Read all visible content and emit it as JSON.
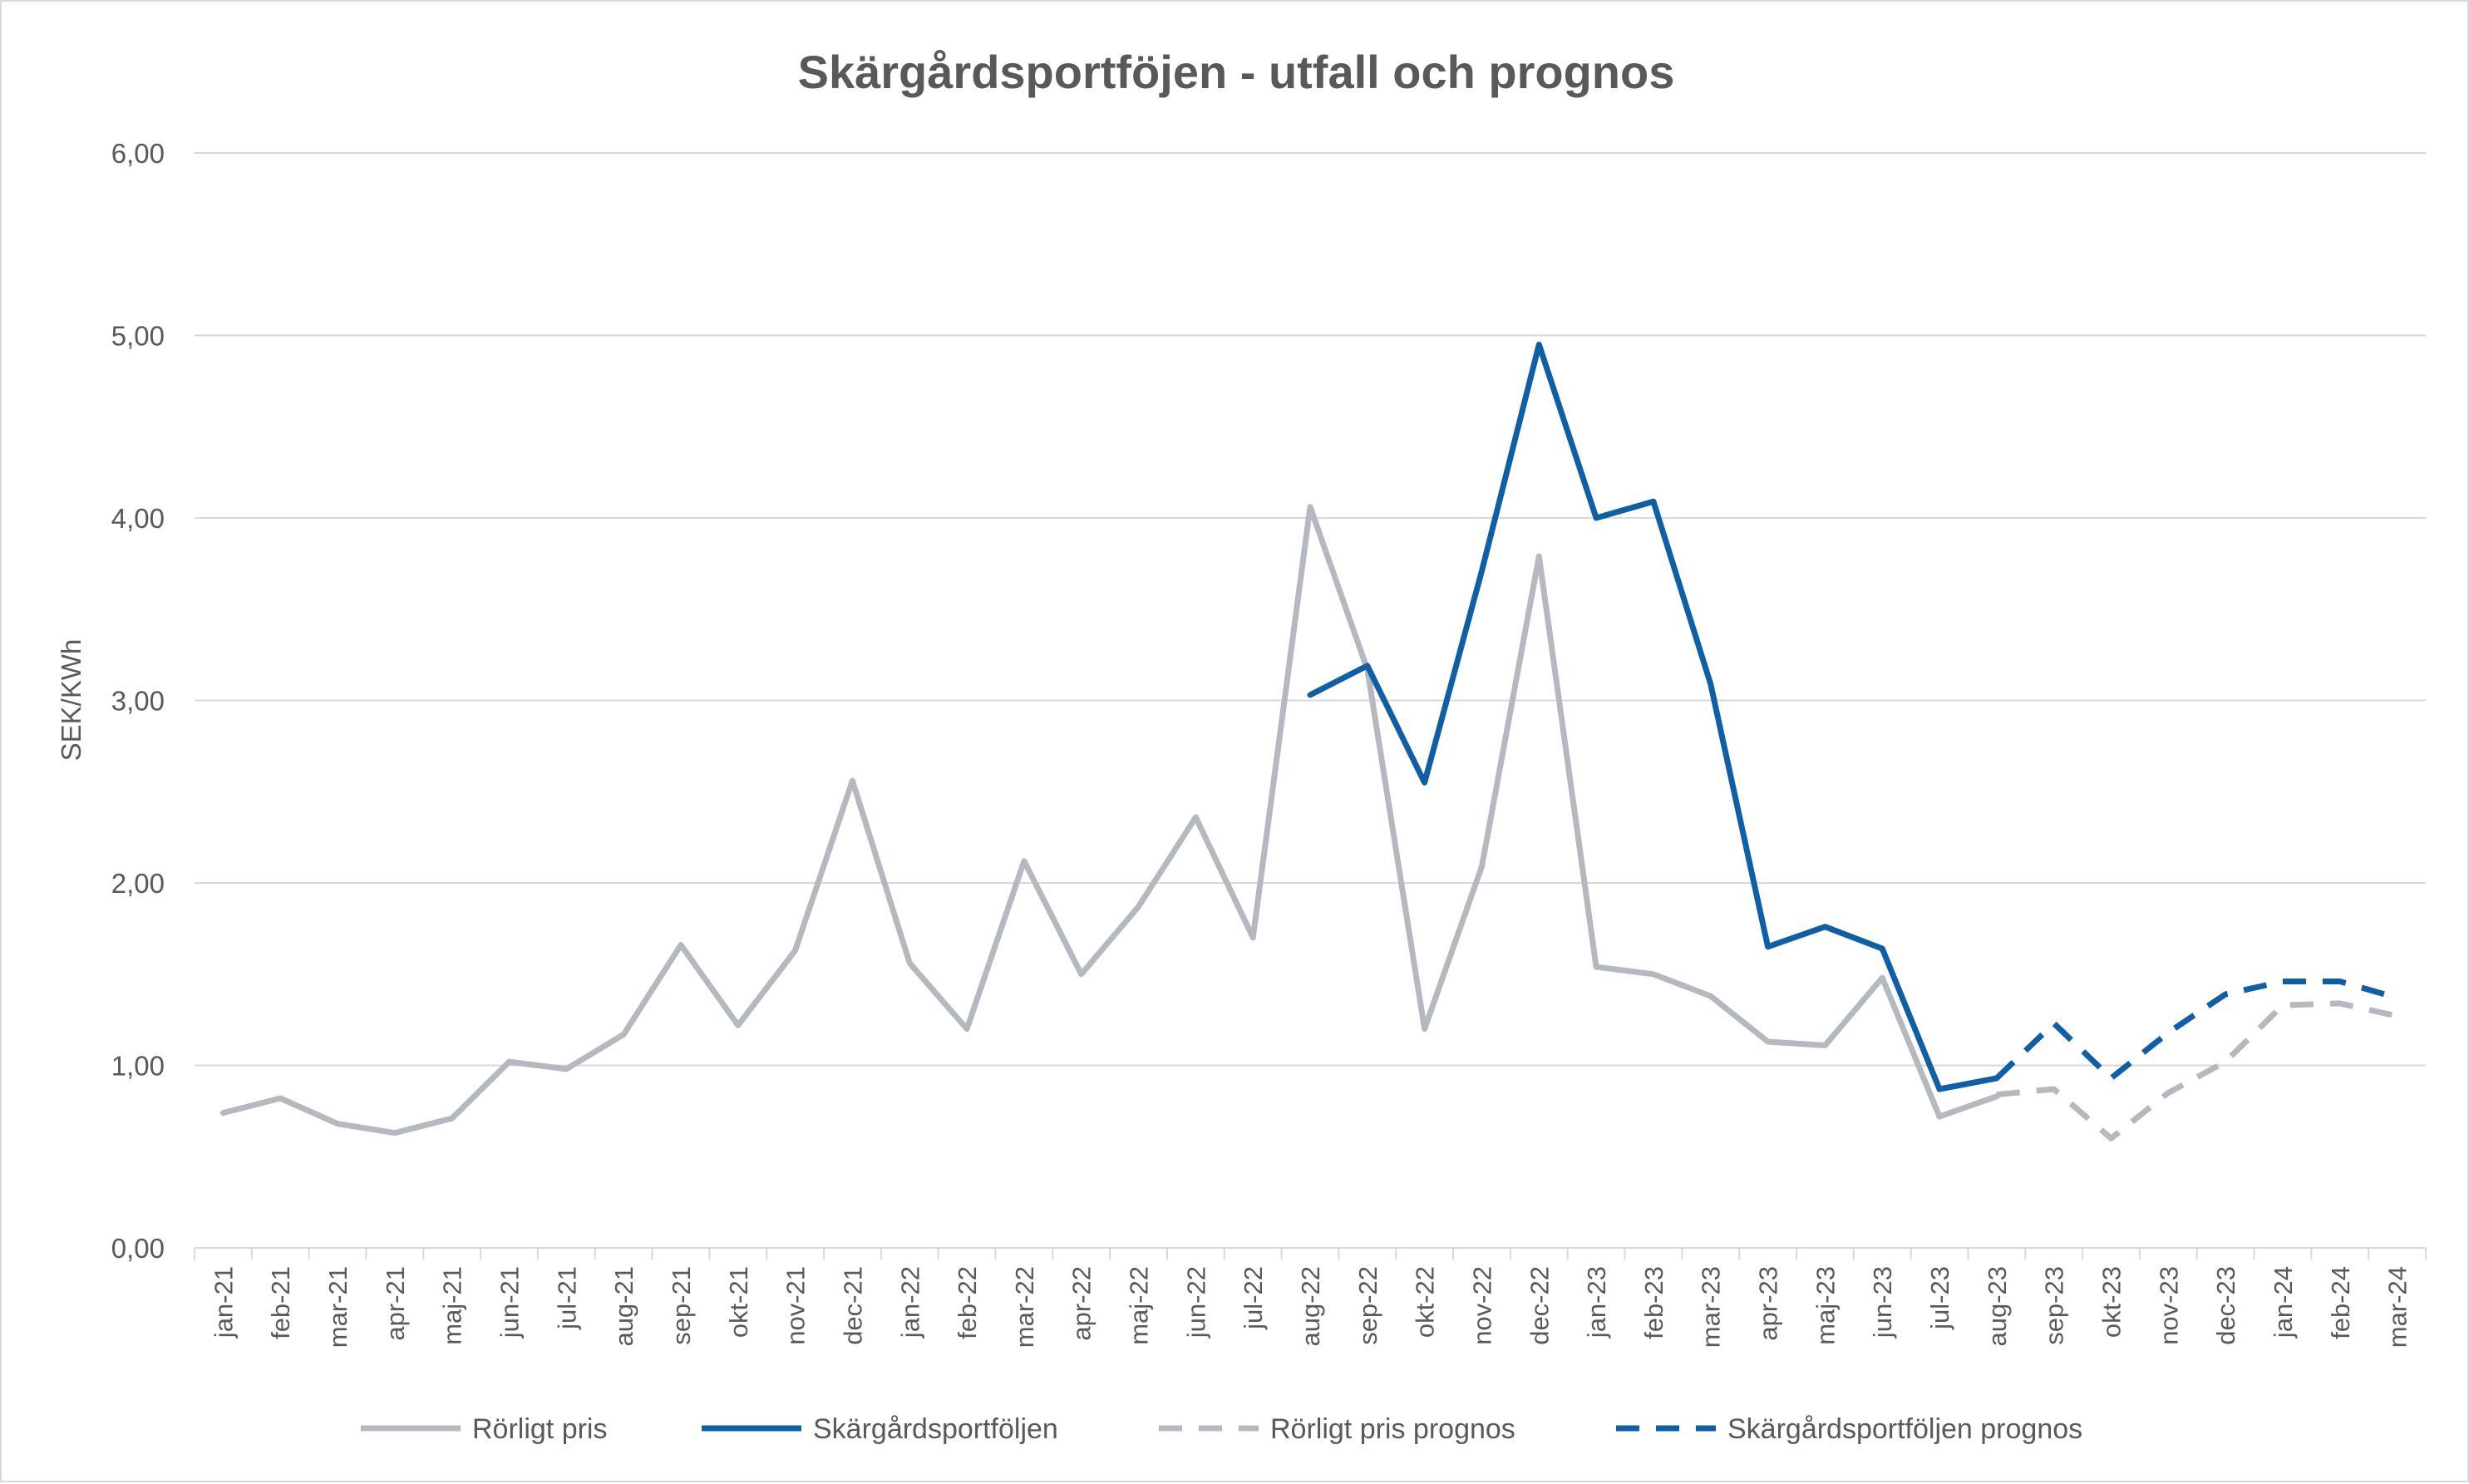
{
  "chart_data": {
    "type": "line",
    "title": "Skärgårdsportföjen - utfall och prognos",
    "xlabel": "",
    "ylabel": "SEK/KWh",
    "ylim": [
      0,
      6
    ],
    "ytick_step": 1,
    "ytick_labels": [
      "0,00",
      "1,00",
      "2,00",
      "3,00",
      "4,00",
      "5,00",
      "6,00"
    ],
    "grid": true,
    "legend_position": "bottom",
    "categories": [
      "jan-21",
      "feb-21",
      "mar-21",
      "apr-21",
      "maj-21",
      "jun-21",
      "jul-21",
      "aug-21",
      "sep-21",
      "okt-21",
      "nov-21",
      "dec-21",
      "jan-22",
      "feb-22",
      "mar-22",
      "apr-22",
      "maj-22",
      "jun-22",
      "jul-22",
      "aug-22",
      "sep-22",
      "okt-22",
      "nov-22",
      "dec-22",
      "jan-23",
      "feb-23",
      "mar-23",
      "apr-23",
      "maj-23",
      "jun-23",
      "jul-23",
      "aug-23",
      "sep-23",
      "okt-23",
      "nov-23",
      "dec-23",
      "jan-24",
      "feb-24",
      "mar-24"
    ],
    "series": [
      {
        "name": "Rörligt pris",
        "color": "#b4b9bf",
        "dashed": false,
        "values": [
          0.74,
          0.82,
          0.68,
          0.63,
          0.71,
          1.02,
          0.98,
          1.17,
          1.66,
          1.22,
          1.63,
          2.56,
          1.56,
          1.2,
          2.12,
          1.5,
          1.87,
          2.36,
          1.7,
          4.06,
          3.17,
          1.2,
          2.09,
          3.79,
          1.54,
          1.5,
          1.38,
          1.13,
          1.11,
          1.48,
          0.72,
          0.83,
          null,
          null,
          null,
          null,
          null,
          null,
          null
        ]
      },
      {
        "name": "Skärgårdsportföljen",
        "color": "#0e5fa6",
        "dashed": false,
        "values": [
          null,
          null,
          null,
          null,
          null,
          null,
          null,
          null,
          null,
          null,
          null,
          null,
          null,
          null,
          null,
          null,
          null,
          null,
          null,
          3.03,
          3.19,
          2.55,
          3.71,
          4.95,
          4.0,
          4.09,
          3.09,
          1.65,
          1.76,
          1.64,
          0.87,
          0.93,
          null,
          null,
          null,
          null,
          null,
          null,
          null
        ]
      },
      {
        "name": "Rörligt pris prognos",
        "color": "#b4b9bf",
        "dashed": true,
        "values": [
          null,
          null,
          null,
          null,
          null,
          null,
          null,
          null,
          null,
          null,
          null,
          null,
          null,
          null,
          null,
          null,
          null,
          null,
          null,
          null,
          null,
          null,
          null,
          null,
          null,
          null,
          null,
          null,
          null,
          null,
          null,
          0.84,
          0.87,
          0.6,
          0.85,
          1.02,
          1.33,
          1.34,
          1.27
        ]
      },
      {
        "name": "Skärgårdsportföljen prognos",
        "color": "#0e5fa6",
        "dashed": true,
        "values": [
          null,
          null,
          null,
          null,
          null,
          null,
          null,
          null,
          null,
          null,
          null,
          null,
          null,
          null,
          null,
          null,
          null,
          null,
          null,
          null,
          null,
          null,
          null,
          null,
          null,
          null,
          null,
          null,
          null,
          null,
          null,
          0.93,
          1.23,
          0.93,
          1.18,
          1.39,
          1.46,
          1.46,
          1.37
        ]
      }
    ]
  }
}
